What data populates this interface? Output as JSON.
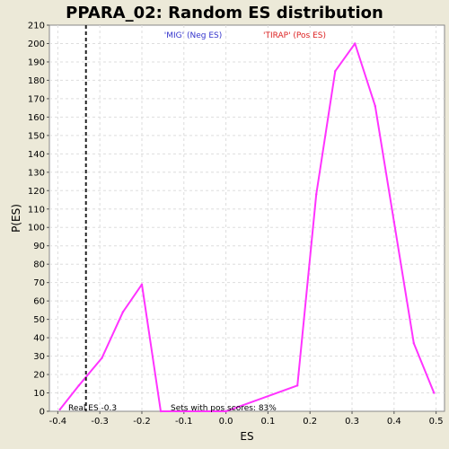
{
  "chart_data": {
    "type": "line",
    "title": "PPARA_02: Random ES distribution",
    "xlabel": "ES",
    "ylabel": "P(ES)",
    "xlim": [
      -0.42,
      0.52
    ],
    "ylim": [
      0,
      210
    ],
    "xticks": [
      -0.4,
      -0.3,
      -0.2,
      -0.1,
      0.0,
      0.1,
      0.2,
      0.3,
      0.4,
      0.5
    ],
    "xtick_labels": [
      "-0.4",
      "-0.3",
      "-0.2",
      "-0.1",
      "0.0",
      "0.1",
      "0.2",
      "0.3",
      "0.4",
      "0.5"
    ],
    "yticks": [
      0,
      10,
      20,
      30,
      40,
      50,
      60,
      70,
      80,
      90,
      100,
      110,
      120,
      130,
      140,
      150,
      160,
      170,
      180,
      190,
      200,
      210
    ],
    "grid": true,
    "series": [
      {
        "color": "#ff33ff",
        "x": [
          -0.395,
          -0.35,
          -0.295,
          -0.245,
          -0.2,
          -0.155,
          -0.1,
          0.0,
          0.17,
          0.215,
          0.26,
          0.307,
          0.355,
          0.4,
          0.447,
          0.495
        ],
        "y": [
          1,
          14,
          29,
          54,
          69,
          0,
          0,
          0,
          14,
          118,
          185,
          200,
          166,
          103,
          37,
          10
        ]
      }
    ],
    "real_es": -0.333,
    "annotations": {
      "legend_neg": "'MIG' (Neg ES)",
      "legend_pos": "'TIRAP' (Pos ES)",
      "real_es_label": "Real ES -0.3",
      "sets_pos_label": "Sets with pos scores: 83%"
    },
    "colors": {
      "neg_legend": "#3333cc",
      "pos_legend": "#dd2222",
      "grid": "#dddddd",
      "plot_bg": "#ffffff",
      "outer_bg": "#ece9d8"
    }
  }
}
